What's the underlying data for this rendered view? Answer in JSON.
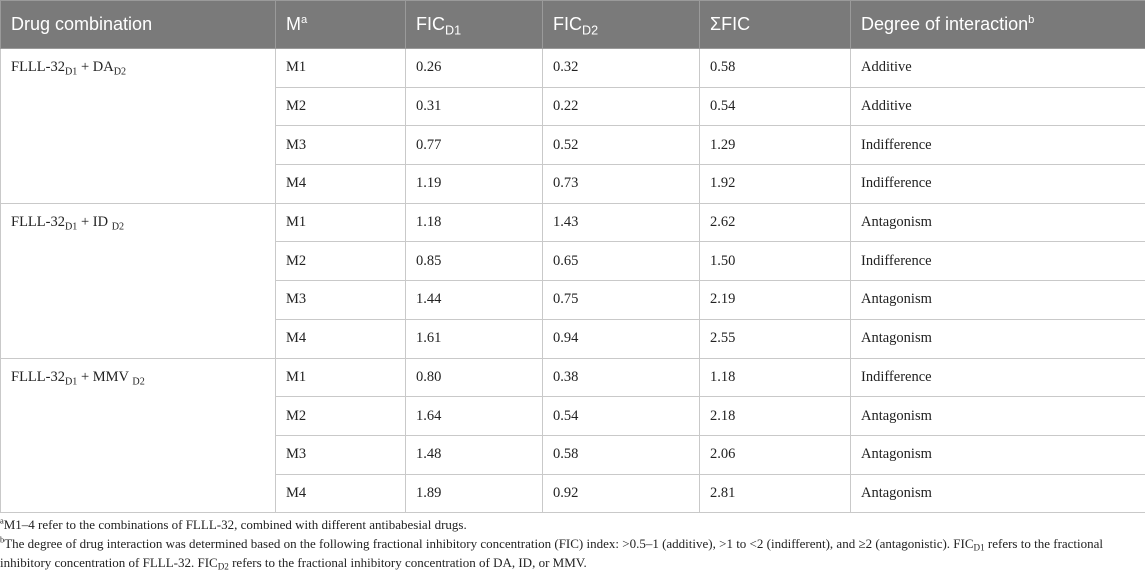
{
  "table": {
    "headers": {
      "combo": "Drug combination",
      "m": "M",
      "m_sup": "a",
      "fic": "FIC",
      "d1": "D1",
      "d2": "D2",
      "sum": "ΣFIC",
      "degree": "Degree of interaction",
      "degree_sup": "b"
    },
    "groups": [
      {
        "combo": {
          "a": "FLLL-32",
          "a_sub": "D1",
          "mid": " + DA",
          "b_sub": "D2"
        },
        "rows": [
          {
            "m": "M1",
            "fic1": "0.26",
            "fic2": "0.32",
            "sum": "0.58",
            "degree": "Additive"
          },
          {
            "m": "M2",
            "fic1": "0.31",
            "fic2": "0.22",
            "sum": "0.54",
            "degree": "Additive"
          },
          {
            "m": "M3",
            "fic1": "0.77",
            "fic2": "0.52",
            "sum": "1.29",
            "degree": "Indifference"
          },
          {
            "m": "M4",
            "fic1": "1.19",
            "fic2": "0.73",
            "sum": "1.92",
            "degree": "Indifference"
          }
        ]
      },
      {
        "combo": {
          "a": "FLLL-32",
          "a_sub": "D1",
          "mid": " + ID ",
          "b_sub": "D2"
        },
        "rows": [
          {
            "m": "M1",
            "fic1": "1.18",
            "fic2": "1.43",
            "sum": "2.62",
            "degree": "Antagonism"
          },
          {
            "m": "M2",
            "fic1": "0.85",
            "fic2": "0.65",
            "sum": "1.50",
            "degree": "Indifference"
          },
          {
            "m": "M3",
            "fic1": "1.44",
            "fic2": "0.75",
            "sum": "2.19",
            "degree": "Antagonism"
          },
          {
            "m": "M4",
            "fic1": "1.61",
            "fic2": "0.94",
            "sum": "2.55",
            "degree": "Antagonism"
          }
        ]
      },
      {
        "combo": {
          "a": "FLLL-32",
          "a_sub": "D1",
          "mid": " + MMV ",
          "b_sub": "D2"
        },
        "rows": [
          {
            "m": "M1",
            "fic1": "0.80",
            "fic2": "0.38",
            "sum": "1.18",
            "degree": "Indifference"
          },
          {
            "m": "M2",
            "fic1": "1.64",
            "fic2": "0.54",
            "sum": "2.18",
            "degree": "Antagonism"
          },
          {
            "m": "M3",
            "fic1": "1.48",
            "fic2": "0.58",
            "sum": "2.06",
            "degree": "Antagonism"
          },
          {
            "m": "M4",
            "fic1": "1.89",
            "fic2": "0.92",
            "sum": "2.81",
            "degree": "Antagonism"
          }
        ]
      }
    ]
  },
  "footnotes": {
    "a_mark": "a",
    "a_text": "M1–4 refer to the combinations of FLLL-32, combined with different antibabesial drugs.",
    "b_mark": "b",
    "b_text1": "The degree of drug interaction was determined based on the following fractional inhibitory concentration (FIC) index: >0.5–1 (additive), >1 to <2 (indifferent), and ≥2 (antagonistic). FIC",
    "b_sub1": "D1",
    "b_text2": " refers to the fractional inhibitory concentration of FLLL-32. FIC",
    "b_sub2": "D2",
    "b_text3": " refers to the fractional inhibitory concentration of DA, ID, or MMV."
  }
}
